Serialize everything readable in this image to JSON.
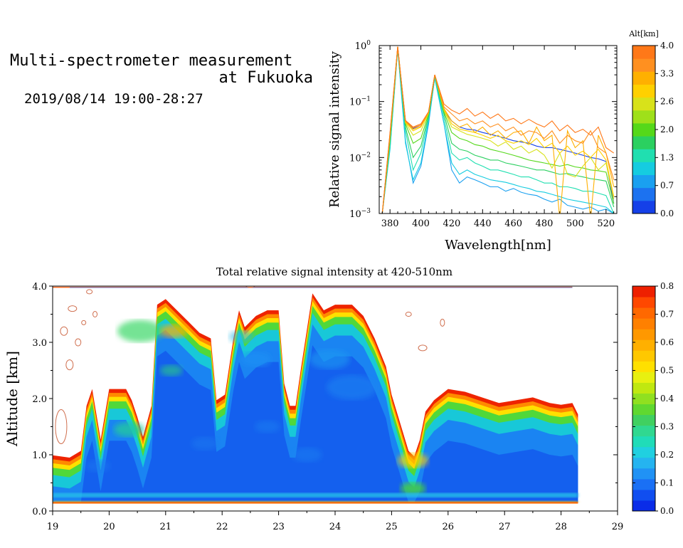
{
  "header": {
    "title_line1": "Multi-spectrometer measurement",
    "title_line2": "at Fukuoka",
    "subtitle": "2019/08/14 19:00-28:27"
  },
  "chart_data": [
    {
      "type": "line",
      "title": "",
      "xlabel": "Wavelength[nm]",
      "ylabel": "Relative signal intensity",
      "xlim": [
        373,
        527
      ],
      "ylim": [
        0.001,
        1
      ],
      "yscale": "log",
      "x_ticks": [
        380,
        400,
        420,
        440,
        460,
        480,
        500,
        520
      ],
      "y_ticks": [
        {
          "value": 0.001,
          "base": "10",
          "exp": "−3"
        },
        {
          "value": 0.01,
          "base": "10",
          "exp": "−2"
        },
        {
          "value": 0.1,
          "base": "10",
          "exp": "−1"
        },
        {
          "value": 1,
          "base": "10",
          "exp": "0"
        }
      ],
      "x": [
        375,
        380,
        385,
        390,
        395,
        400,
        405,
        409,
        415,
        420,
        425,
        430,
        435,
        440,
        445,
        450,
        455,
        460,
        465,
        470,
        475,
        480,
        485,
        490,
        495,
        500,
        505,
        510,
        515,
        520,
        525
      ],
      "colorbar": {
        "title": "Alt[km]",
        "tick_labels": [
          "0.0",
          "0.7",
          "1.3",
          "2.0",
          "2.6",
          "3.3",
          "4.0"
        ],
        "colors": [
          "#1540e8",
          "#1c72f0",
          "#1aa0f0",
          "#15cce0",
          "#20dfb0",
          "#2bd060",
          "#55d81a",
          "#9fe01a",
          "#d8e21a",
          "#ffd000",
          "#ffb000",
          "#ff9020",
          "#ff7818"
        ]
      },
      "series": [
        {
          "alt": 0.0,
          "color": "#1540e8",
          "values": [
            0.001,
            0.025,
            0.95,
            0.045,
            0.033,
            0.038,
            0.06,
            0.3,
            0.07,
            0.045,
            0.035,
            0.032,
            0.031,
            0.028,
            0.026,
            0.024,
            0.022,
            0.02,
            0.019,
            0.018,
            0.016,
            0.015,
            0.015,
            0.014,
            0.013,
            0.012,
            0.011,
            0.01,
            0.0095,
            0.0085,
            0.0015
          ]
        },
        {
          "alt": 0.7,
          "color": "#1aa0f0",
          "values": [
            0.001,
            0.015,
            0.9,
            0.02,
            0.0035,
            0.007,
            0.04,
            0.27,
            0.04,
            0.006,
            0.0035,
            0.0045,
            0.004,
            0.0035,
            0.003,
            0.003,
            0.0025,
            0.0028,
            0.0024,
            0.0022,
            0.0021,
            0.0018,
            0.0016,
            0.0018,
            0.0014,
            0.0013,
            0.0012,
            0.0013,
            0.0011,
            0.0012,
            0.001
          ]
        },
        {
          "alt": 1.0,
          "color": "#15cce0",
          "values": [
            0.001,
            0.014,
            0.88,
            0.018,
            0.004,
            0.008,
            0.045,
            0.26,
            0.04,
            0.008,
            0.005,
            0.006,
            0.005,
            0.0045,
            0.004,
            0.0038,
            0.0036,
            0.0033,
            0.003,
            0.0028,
            0.0025,
            0.0024,
            0.0022,
            0.002,
            0.0018,
            0.0017,
            0.0016,
            0.0015,
            0.0014,
            0.0013,
            0.001
          ]
        },
        {
          "alt": 1.3,
          "color": "#20dfb0",
          "values": [
            0.001,
            0.016,
            0.9,
            0.03,
            0.006,
            0.012,
            0.05,
            0.28,
            0.05,
            0.012,
            0.009,
            0.01,
            0.008,
            0.007,
            0.006,
            0.006,
            0.0055,
            0.005,
            0.0045,
            0.0045,
            0.004,
            0.0035,
            0.0035,
            0.003,
            0.003,
            0.0028,
            0.0025,
            0.0025,
            0.0023,
            0.0021,
            0.001
          ]
        },
        {
          "alt": 1.7,
          "color": "#2bd060",
          "values": [
            0.001,
            0.02,
            0.92,
            0.035,
            0.01,
            0.016,
            0.055,
            0.29,
            0.06,
            0.018,
            0.014,
            0.013,
            0.011,
            0.01,
            0.009,
            0.009,
            0.008,
            0.0075,
            0.007,
            0.0065,
            0.006,
            0.006,
            0.0055,
            0.005,
            0.0052,
            0.0048,
            0.0045,
            0.0042,
            0.004,
            0.0038,
            0.0013
          ]
        },
        {
          "alt": 2.0,
          "color": "#55d81a",
          "values": [
            0.001,
            0.022,
            0.93,
            0.04,
            0.018,
            0.022,
            0.06,
            0.3,
            0.065,
            0.028,
            0.022,
            0.02,
            0.017,
            0.016,
            0.014,
            0.013,
            0.012,
            0.011,
            0.01,
            0.009,
            0.0085,
            0.008,
            0.0075,
            0.007,
            0.0075,
            0.0068,
            0.0065,
            0.006,
            0.0058,
            0.0055,
            0.0015
          ]
        },
        {
          "alt": 2.6,
          "color": "#d8e21a",
          "values": [
            0.001,
            0.024,
            0.94,
            0.042,
            0.025,
            0.03,
            0.062,
            0.3,
            0.07,
            0.035,
            0.03,
            0.026,
            0.024,
            0.022,
            0.02,
            0.016,
            0.019,
            0.014,
            0.016,
            0.012,
            0.014,
            0.011,
            0.0065,
            0.012,
            0.005,
            0.0045,
            0.007,
            0.01,
            0.006,
            0.008,
            0.0018
          ]
        },
        {
          "alt": 3.0,
          "color": "#ffd000",
          "values": [
            0.001,
            0.025,
            0.94,
            0.043,
            0.03,
            0.035,
            0.063,
            0.3,
            0.072,
            0.04,
            0.032,
            0.03,
            0.028,
            0.025,
            0.022,
            0.025,
            0.02,
            0.018,
            0.02,
            0.017,
            0.022,
            0.015,
            0.018,
            0.012,
            0.016,
            0.011,
            0.013,
            0.01,
            0.014,
            0.009,
            0.002
          ]
        },
        {
          "alt": 3.3,
          "color": "#ffb000",
          "values": [
            0.001,
            0.026,
            0.95,
            0.044,
            0.032,
            0.036,
            0.064,
            0.3,
            0.075,
            0.045,
            0.035,
            0.04,
            0.028,
            0.035,
            0.025,
            0.03,
            0.022,
            0.028,
            0.03,
            0.018,
            0.035,
            0.02,
            0.025,
            0.0008,
            0.03,
            0.015,
            0.02,
            0.0008,
            0.025,
            0.012,
            0.003
          ]
        },
        {
          "alt": 3.7,
          "color": "#ff9020",
          "values": [
            0.001,
            0.027,
            0.95,
            0.045,
            0.034,
            0.038,
            0.065,
            0.3,
            0.08,
            0.06,
            0.045,
            0.05,
            0.04,
            0.045,
            0.035,
            0.04,
            0.03,
            0.035,
            0.025,
            0.03,
            0.028,
            0.022,
            0.03,
            0.018,
            0.025,
            0.02,
            0.018,
            0.03,
            0.015,
            0.012,
            0.004
          ]
        },
        {
          "alt": 4.0,
          "color": "#ff7818",
          "values": [
            0.001,
            0.028,
            0.96,
            0.046,
            0.035,
            0.04,
            0.066,
            0.3,
            0.09,
            0.07,
            0.06,
            0.075,
            0.055,
            0.065,
            0.05,
            0.06,
            0.045,
            0.05,
            0.04,
            0.048,
            0.04,
            0.035,
            0.045,
            0.03,
            0.038,
            0.028,
            0.032,
            0.025,
            0.035,
            0.015,
            0.012
          ]
        }
      ]
    },
    {
      "type": "heatmap",
      "title": "Total relative signal intensity at 420-510nm",
      "xlabel": "",
      "ylabel": "Altitude [km]",
      "xlim": [
        19,
        29
      ],
      "ylim": [
        0,
        4
      ],
      "x_ticks": [
        19,
        20,
        21,
        22,
        23,
        24,
        25,
        26,
        27,
        28,
        29
      ],
      "y_ticks": [
        0,
        1,
        2,
        3,
        4
      ],
      "y_tick_labels": [
        "0.0",
        "1.0",
        "2.0",
        "3.0",
        "4.0"
      ],
      "data_x_end": 28.3,
      "colorbar": {
        "min": 0,
        "max": 0.8,
        "tick_labels": [
          "0.0",
          "0.1",
          "0.2",
          "0.3",
          "0.4",
          "0.5",
          "0.6",
          "0.7",
          "0.8"
        ],
        "colors": [
          "#0a2ce8",
          "#104ef0",
          "#1a70f5",
          "#2092f5",
          "#25b4f0",
          "#20d0e0",
          "#20dcb8",
          "#30d890",
          "#40d060",
          "#60d830",
          "#90e020",
          "#c0e810",
          "#e8f010",
          "#ffe000",
          "#ffc800",
          "#ffb000",
          "#ff9800",
          "#ff8000",
          "#ff6800",
          "#ff4800",
          "#ee2000"
        ]
      },
      "cloud_base_profile": [
        [
          19.0,
          0.92
        ],
        [
          19.3,
          0.88
        ],
        [
          19.5,
          1.0
        ],
        [
          19.6,
          1.8
        ],
        [
          19.7,
          2.1
        ],
        [
          19.85,
          1.2
        ],
        [
          20.0,
          2.1
        ],
        [
          20.3,
          2.1
        ],
        [
          20.4,
          1.9
        ],
        [
          20.5,
          1.6
        ],
        [
          20.6,
          1.25
        ],
        [
          20.75,
          1.8
        ],
        [
          20.85,
          3.6
        ],
        [
          21.0,
          3.7
        ],
        [
          21.2,
          3.5
        ],
        [
          21.4,
          3.3
        ],
        [
          21.6,
          3.1
        ],
        [
          21.8,
          3.0
        ],
        [
          21.9,
          1.9
        ],
        [
          22.05,
          2.0
        ],
        [
          22.2,
          3.0
        ],
        [
          22.3,
          3.5
        ],
        [
          22.4,
          3.2
        ],
        [
          22.6,
          3.4
        ],
        [
          22.8,
          3.5
        ],
        [
          23.0,
          3.5
        ],
        [
          23.1,
          2.2
        ],
        [
          23.2,
          1.8
        ],
        [
          23.3,
          1.8
        ],
        [
          23.4,
          2.5
        ],
        [
          23.6,
          3.8
        ],
        [
          23.8,
          3.5
        ],
        [
          24.0,
          3.6
        ],
        [
          24.3,
          3.6
        ],
        [
          24.5,
          3.4
        ],
        [
          24.7,
          3.0
        ],
        [
          24.9,
          2.5
        ],
        [
          25.0,
          2.0
        ],
        [
          25.15,
          1.5
        ],
        [
          25.3,
          1.0
        ],
        [
          25.4,
          0.9
        ],
        [
          25.5,
          1.2
        ],
        [
          25.6,
          1.7
        ],
        [
          25.75,
          1.9
        ],
        [
          26.0,
          2.1
        ],
        [
          26.3,
          2.05
        ],
        [
          26.6,
          1.95
        ],
        [
          26.9,
          1.85
        ],
        [
          27.2,
          1.9
        ],
        [
          27.5,
          1.95
        ],
        [
          27.8,
          1.85
        ],
        [
          28.0,
          1.82
        ],
        [
          28.2,
          1.85
        ],
        [
          28.3,
          1.65
        ]
      ],
      "gaps": [
        [
          19.4,
          19.62
        ],
        [
          20.55,
          20.72
        ],
        [
          21.95,
          22.12
        ],
        [
          23.15,
          23.38
        ],
        [
          25.3,
          25.5
        ]
      ]
    }
  ]
}
